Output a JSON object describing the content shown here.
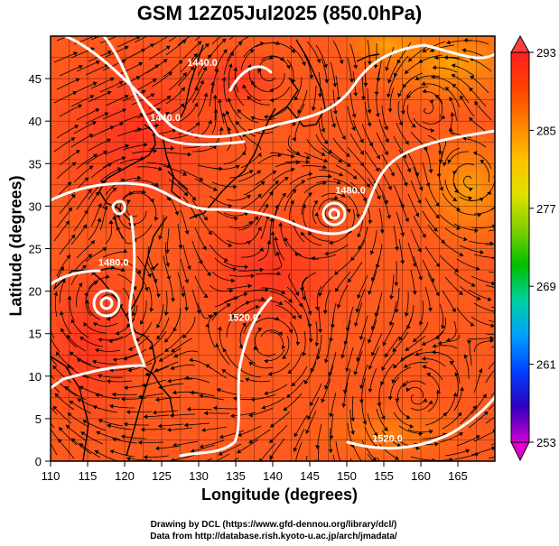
{
  "chart_data": {
    "type": "heatmap",
    "title": "GSM 12Z05Jul2025 (850.0hPa)",
    "xlabel": "Longitude (degrees)",
    "ylabel": "Latitude  (degrees)",
    "xlim": [
      110,
      170
    ],
    "ylim": [
      0,
      50
    ],
    "x_ticks": [
      "110",
      "115",
      "120",
      "125",
      "130",
      "135",
      "140",
      "145",
      "150",
      "155",
      "160",
      "165"
    ],
    "y_ticks": [
      "0",
      "5",
      "10",
      "15",
      "20",
      "25",
      "30",
      "35",
      "40",
      "45"
    ],
    "colorbar": {
      "range": [
        253,
        293
      ],
      "ticks": [
        "253",
        "261",
        "269",
        "277",
        "285",
        "293"
      ],
      "colors": [
        "#d000d0",
        "#3000c0",
        "#0040ff",
        "#00a0ff",
        "#00d0a0",
        "#00c000",
        "#80d000",
        "#e0e000",
        "#ffc000",
        "#ff8000",
        "#ff4000",
        "#ff2020"
      ]
    },
    "contour_labels": [
      {
        "text": "1440.0",
        "lon": 130.5,
        "lat": 46.5
      },
      {
        "text": "1440.0",
        "lon": 125.5,
        "lat": 40.0
      },
      {
        "text": "1480.0",
        "lon": 150.5,
        "lat": 31.5
      },
      {
        "text": "1480.0",
        "lon": 118.5,
        "lat": 23.0
      },
      {
        "text": "1520.0",
        "lon": 136.0,
        "lat": 16.5
      },
      {
        "text": "1520.0",
        "lon": 155.5,
        "lat": 2.3
      }
    ]
  },
  "credits": {
    "line1": "Drawing by DCL (https://www.gfd-dennou.org/library/dcl/)",
    "line2": "Data from http://database.rish.kyoto-u.ac.jp/arch/jmadata/"
  }
}
